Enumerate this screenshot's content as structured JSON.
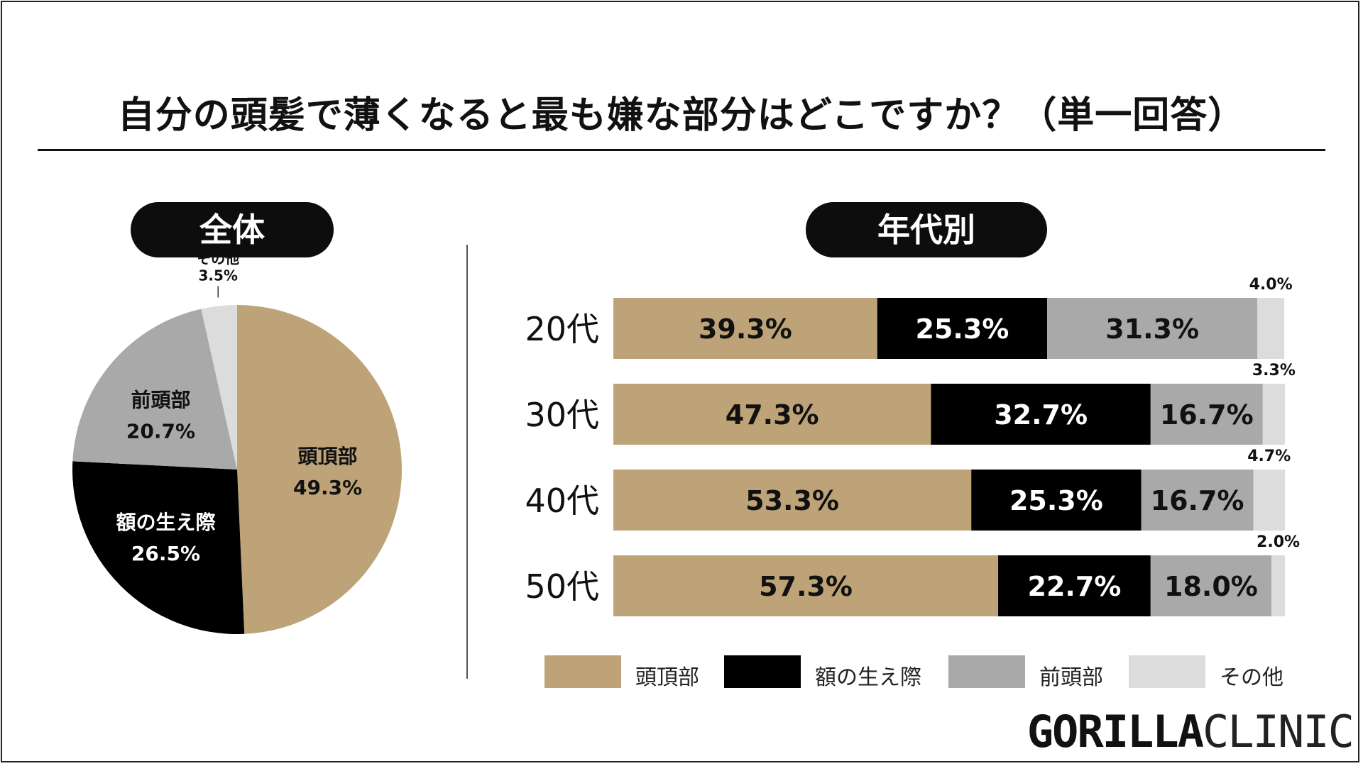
{
  "title": "自分の頭髪で薄くなると最も嫌な部分はどこですか？（単一回答）",
  "pills": {
    "overall": "全体",
    "by_age": "年代別"
  },
  "brand": {
    "bold": "GORILLA",
    "light": "CLINIC"
  },
  "colors": {
    "頭頂部": "#bda377",
    "額の生え際": "#000000",
    "前頭部": "#a9a9a9",
    "その他": "#dcdcdc"
  },
  "legend": [
    {
      "label": "頭頂部",
      "color": "#bda377"
    },
    {
      "label": "額の生え際",
      "color": "#000000"
    },
    {
      "label": "前頭部",
      "color": "#a9a9a9"
    },
    {
      "label": "その他",
      "color": "#dcdcdc"
    }
  ],
  "chart_data": [
    {
      "type": "pie",
      "title": "全体",
      "slices": [
        {
          "label": "頭頂部",
          "value": 49.3,
          "value_label": "49.3%",
          "color": "#bda377"
        },
        {
          "label": "額の生え際",
          "value": 26.5,
          "value_label": "26.5%",
          "color": "#000000"
        },
        {
          "label": "前頭部",
          "value": 20.7,
          "value_label": "20.7%",
          "color": "#a9a9a9"
        },
        {
          "label": "その他",
          "value": 3.5,
          "value_label": "3.5%",
          "color": "#dcdcdc"
        }
      ]
    },
    {
      "type": "bar",
      "orientation": "horizontal",
      "stacked": true,
      "title": "年代別",
      "categories": [
        "20代",
        "30代",
        "40代",
        "50代"
      ],
      "series": [
        {
          "name": "頭頂部",
          "color": "#bda377",
          "values": [
            39.3,
            47.3,
            53.3,
            57.3
          ],
          "labels": [
            "39.3%",
            "47.3%",
            "53.3%",
            "57.3%"
          ]
        },
        {
          "name": "額の生え際",
          "color": "#000000",
          "values": [
            25.3,
            32.7,
            25.3,
            22.7
          ],
          "labels": [
            "25.3%",
            "32.7%",
            "25.3%",
            "22.7%"
          ]
        },
        {
          "name": "前頭部",
          "color": "#a9a9a9",
          "values": [
            31.3,
            16.7,
            16.7,
            18.0
          ],
          "labels": [
            "31.3%",
            "16.7%",
            "16.7%",
            "18.0%"
          ]
        },
        {
          "name": "その他",
          "color": "#dcdcdc",
          "values": [
            4.0,
            3.3,
            4.7,
            2.0
          ],
          "labels": [
            "4.0%",
            "3.3%",
            "4.7%",
            "2.0%"
          ]
        }
      ],
      "xlim": [
        0,
        100
      ],
      "legend": "bottom"
    }
  ]
}
